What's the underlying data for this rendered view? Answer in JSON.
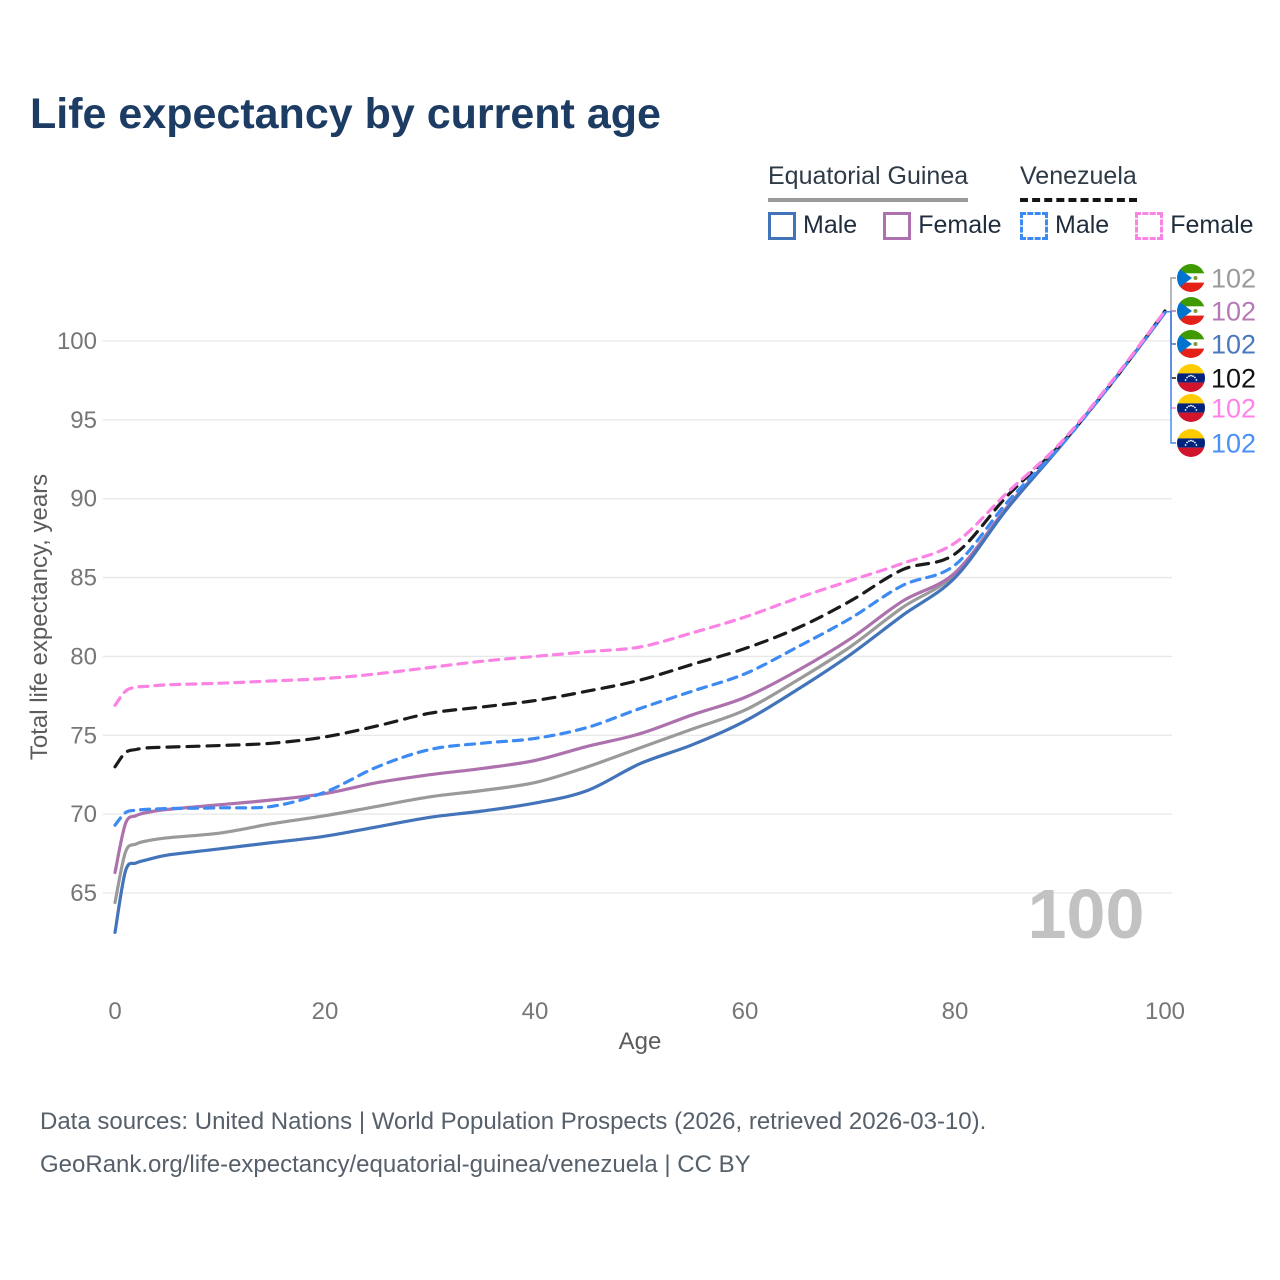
{
  "title": "Life expectancy by current age",
  "colors": {
    "title": "#1c3c63",
    "grid": "#e7e7e7",
    "tick_label": "#767676",
    "axis_title": "#5c5c5c",
    "watermark": "#c2c2c2",
    "eg_male": "#4374ba",
    "eg_female": "#ad72ad",
    "eg_total": "#9a9a9a",
    "ve_male": "#3d8bf2",
    "ve_female": "#fb83e4",
    "ve_total": "#1b1b1b"
  },
  "legend": {
    "groups": [
      {
        "label": "Equatorial Guinea",
        "line_style": "solid",
        "items": [
          {
            "label": "Male",
            "color": "#4374ba"
          },
          {
            "label": "Female",
            "color": "#ad72ad"
          }
        ]
      },
      {
        "label": "Venezuela",
        "line_style": "dashed",
        "items": [
          {
            "label": "Male",
            "color": "#3d8bf2"
          },
          {
            "label": "Female",
            "color": "#fb83e4"
          }
        ]
      }
    ]
  },
  "chart_data": {
    "type": "line",
    "xlabel": "Age",
    "ylabel": "Total life expectancy, years",
    "x_ticks": [
      0,
      20,
      40,
      60,
      80,
      100
    ],
    "y_ticks": [
      65,
      70,
      75,
      80,
      85,
      90,
      95,
      100
    ],
    "xlim": [
      0,
      100
    ],
    "ylim": [
      62,
      103
    ],
    "grid": "horizontal",
    "watermark": "100",
    "x": [
      0,
      1,
      2,
      3,
      5,
      10,
      15,
      20,
      25,
      30,
      35,
      40,
      45,
      50,
      55,
      60,
      65,
      70,
      75,
      80,
      85,
      90,
      95,
      100
    ],
    "series": [
      {
        "key": "eg_total",
        "name": "Equatorial Guinea — Both sexes",
        "country": "Equatorial Guinea",
        "dash": "solid",
        "color": "#9a9a9a",
        "values": [
          64.4,
          67.6,
          68.1,
          68.3,
          68.5,
          68.8,
          69.4,
          69.9,
          70.5,
          71.1,
          71.5,
          72.0,
          73.0,
          74.2,
          75.4,
          76.6,
          78.5,
          80.6,
          83.1,
          85.2,
          89.4,
          93.3,
          97.4,
          101.8
        ]
      },
      {
        "key": "eg_female",
        "name": "Equatorial Guinea — Female",
        "country": "Equatorial Guinea",
        "dash": "solid",
        "color": "#ad72ad",
        "values": [
          66.3,
          69.4,
          69.9,
          70.1,
          70.3,
          70.6,
          70.9,
          71.3,
          72.0,
          72.5,
          72.9,
          73.4,
          74.3,
          75.1,
          76.3,
          77.4,
          79.1,
          81.1,
          83.5,
          85.3,
          89.5,
          93.3,
          97.4,
          101.8
        ]
      },
      {
        "key": "eg_male",
        "name": "Equatorial Guinea — Male",
        "country": "Equatorial Guinea",
        "dash": "solid",
        "color": "#4374ba",
        "values": [
          62.5,
          66.4,
          66.9,
          67.1,
          67.4,
          67.8,
          68.2,
          68.6,
          69.2,
          69.8,
          70.2,
          70.7,
          71.5,
          73.2,
          74.4,
          75.9,
          77.9,
          80.1,
          82.6,
          85.0,
          89.4,
          93.3,
          97.4,
          101.8
        ]
      },
      {
        "key": "ve_total",
        "name": "Venezuela — Both sexes",
        "country": "Venezuela",
        "dash": "dashed",
        "color": "#1b1b1b",
        "values": [
          73.0,
          73.9,
          74.1,
          74.2,
          74.25,
          74.35,
          74.5,
          74.9,
          75.6,
          76.4,
          76.8,
          77.2,
          77.8,
          78.5,
          79.5,
          80.5,
          81.8,
          83.5,
          85.5,
          86.5,
          90.2,
          93.4,
          97.4,
          101.9
        ]
      },
      {
        "key": "ve_male",
        "name": "Venezuela — Male",
        "country": "Venezuela",
        "dash": "dashed",
        "color": "#3d8bf2",
        "values": [
          69.3,
          70.1,
          70.25,
          70.3,
          70.35,
          70.4,
          70.5,
          71.4,
          73.0,
          74.1,
          74.5,
          74.8,
          75.5,
          76.7,
          77.8,
          78.9,
          80.6,
          82.4,
          84.5,
          85.8,
          89.8,
          93.3,
          97.4,
          101.8
        ]
      },
      {
        "key": "ve_female",
        "name": "Venezuela — Female",
        "country": "Venezuela",
        "dash": "dashed",
        "color": "#fb83e4",
        "values": [
          76.9,
          77.8,
          78.05,
          78.1,
          78.2,
          78.3,
          78.45,
          78.6,
          78.9,
          79.3,
          79.7,
          80.0,
          80.3,
          80.6,
          81.5,
          82.5,
          83.7,
          84.8,
          85.9,
          87.2,
          90.4,
          93.5,
          97.5,
          101.9
        ]
      }
    ],
    "end_labels": [
      {
        "series": "eg_total",
        "flag": "equatorial-guinea",
        "label": "102",
        "color": "#9a9a9a"
      },
      {
        "series": "eg_female",
        "flag": "equatorial-guinea",
        "label": "102",
        "color": "#b679b6"
      },
      {
        "series": "eg_male",
        "flag": "equatorial-guinea",
        "label": "102",
        "color": "#4a79bd"
      },
      {
        "series": "ve_total",
        "flag": "venezuela",
        "label": "102",
        "color": "#111111"
      },
      {
        "series": "ve_female",
        "flag": "venezuela",
        "label": "102",
        "color": "#ff82e8"
      },
      {
        "series": "ve_male",
        "flag": "venezuela",
        "label": "102",
        "color": "#4a90f5"
      }
    ]
  },
  "footer": {
    "line1": "Data sources: United Nations | World Population Prospects (2026, retrieved 2026-03-10).",
    "line2": "GeoRank.org/life-expectancy/equatorial-guinea/venezuela | CC BY"
  }
}
